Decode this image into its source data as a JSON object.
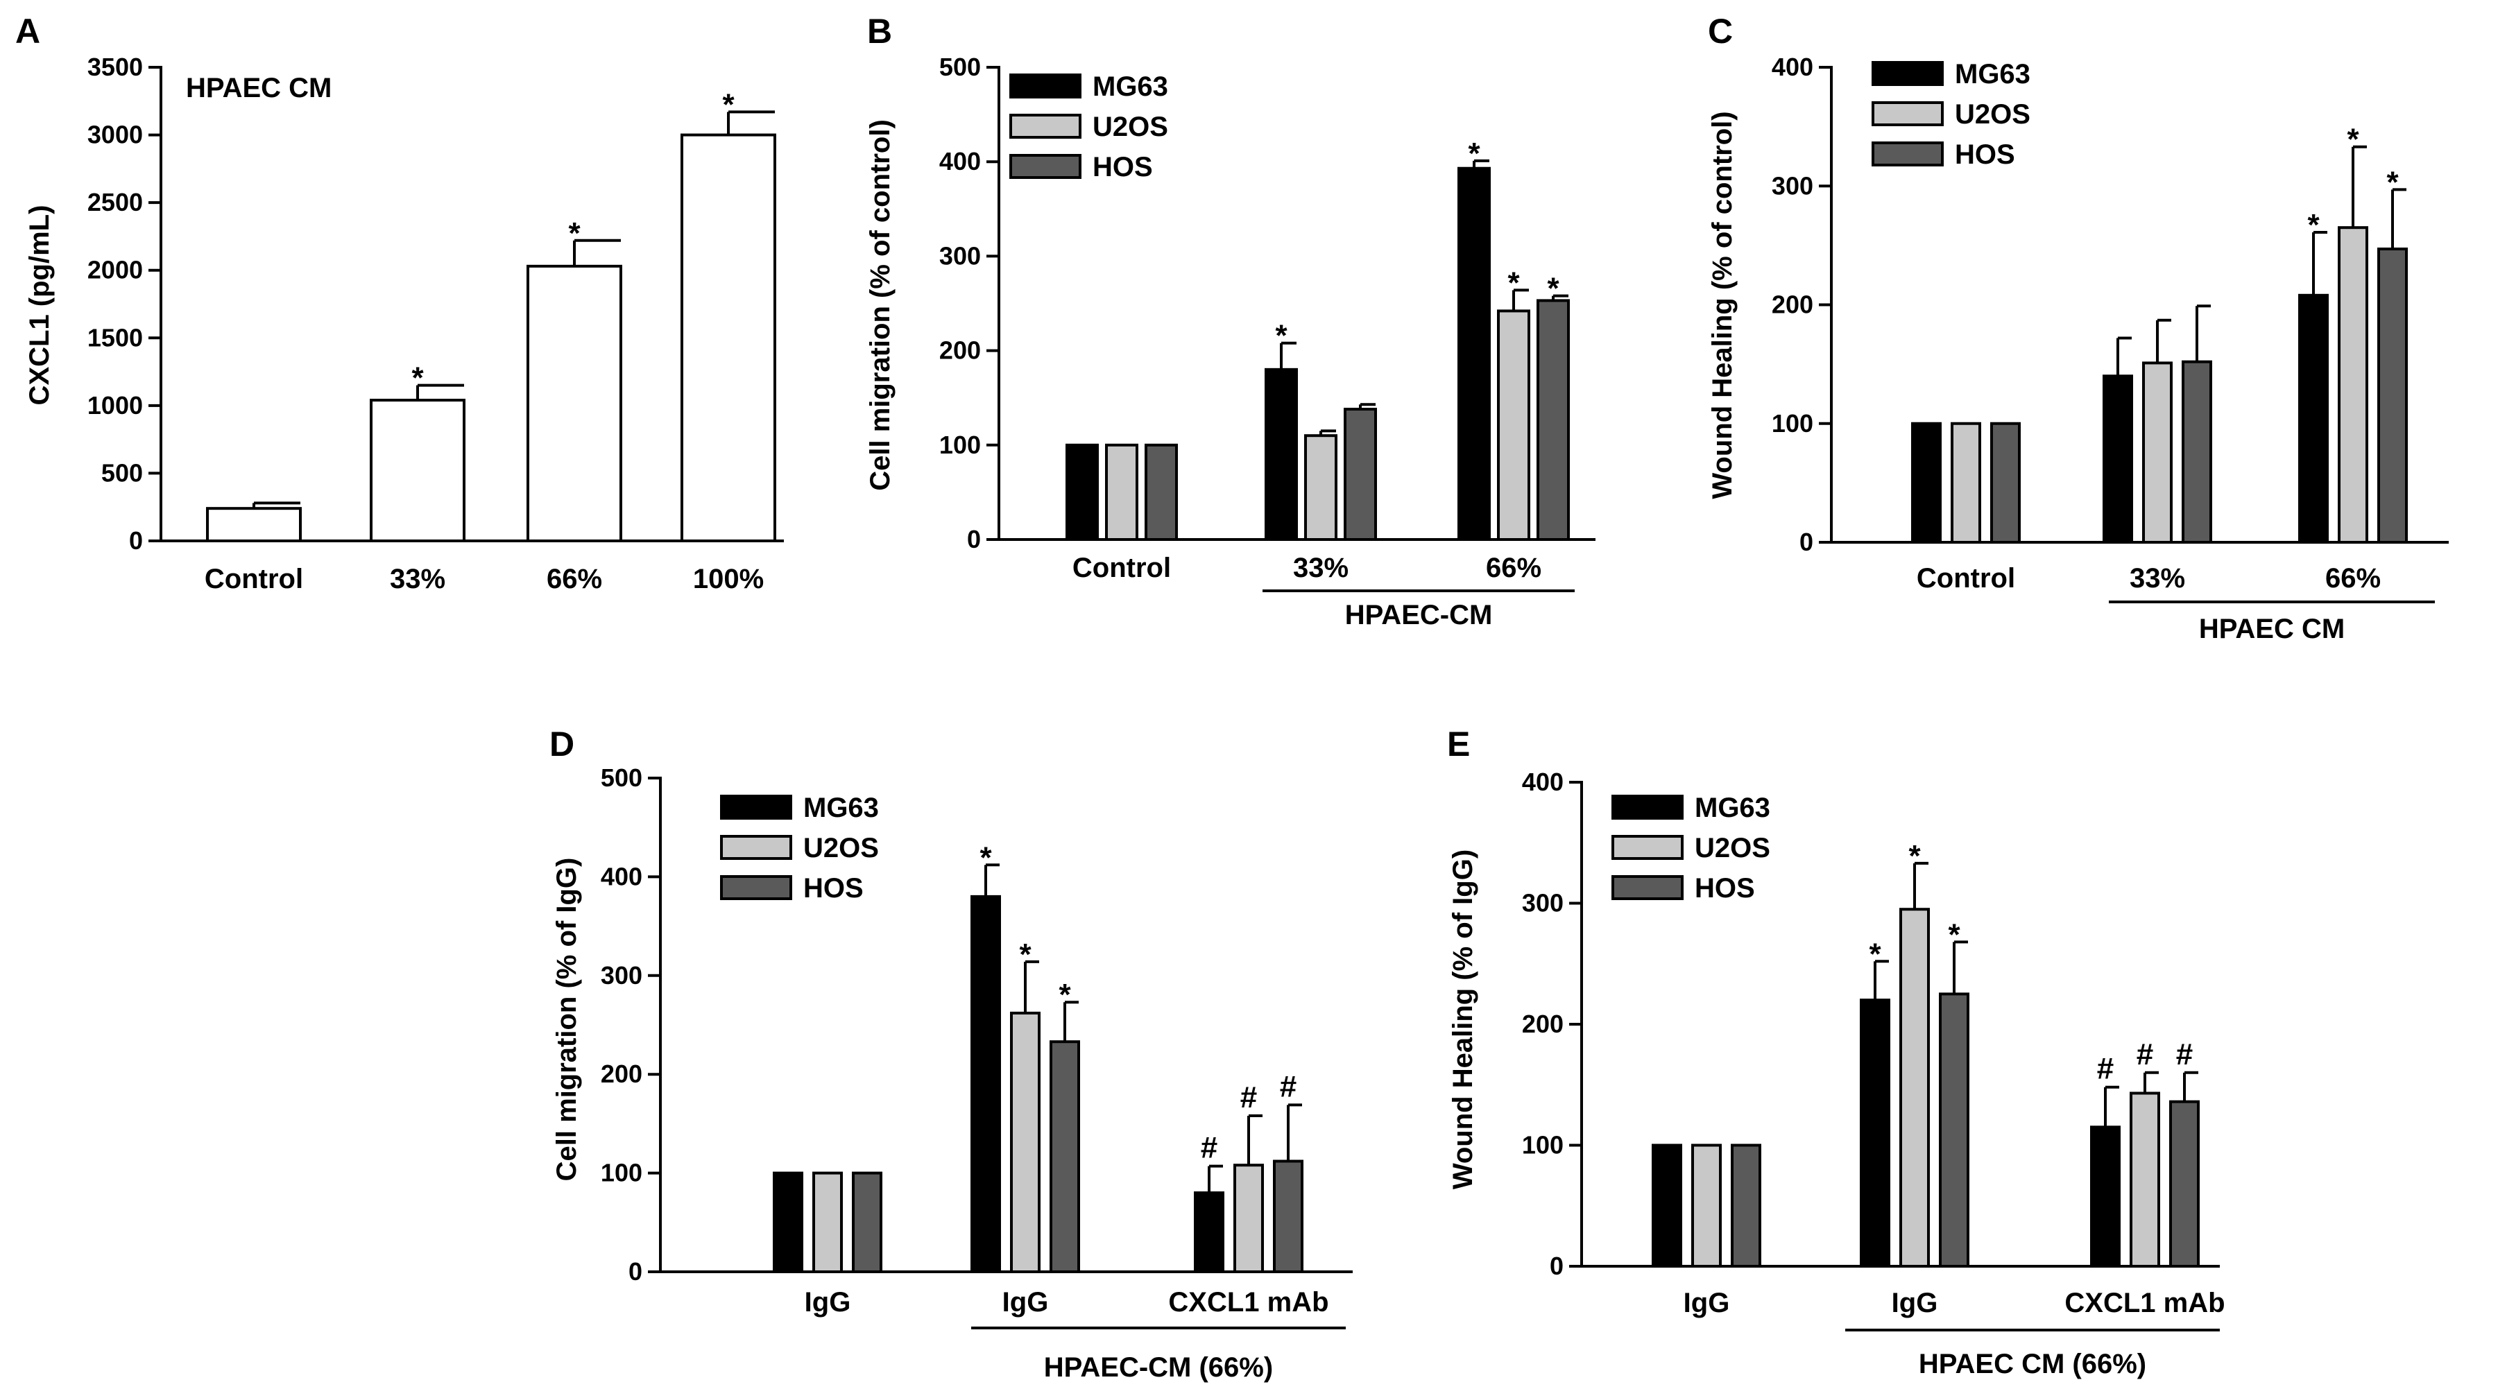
{
  "chart_data": [
    {
      "id": "A",
      "panel_label": "A",
      "type": "bar",
      "title": "HPAEC CM",
      "ylabel": "CXCL1 (pg/mL)",
      "ylim": [
        0,
        3500
      ],
      "yticks": [
        0,
        500,
        1000,
        1500,
        2000,
        2500,
        3000,
        3500
      ],
      "categories": [
        "Control",
        "33%",
        "66%",
        "100%"
      ],
      "series": [
        {
          "name": "CXCL1",
          "color": "#ffffff",
          "values": [
            240,
            1040,
            2030,
            3000
          ],
          "errors": [
            40,
            110,
            190,
            170
          ],
          "marks": [
            "",
            "*",
            "*",
            "*"
          ]
        }
      ]
    },
    {
      "id": "B",
      "panel_label": "B",
      "type": "bar",
      "ylabel": "Cell migration (% of control)",
      "ylim": [
        0,
        500
      ],
      "yticks": [
        0,
        100,
        200,
        300,
        400,
        500
      ],
      "categories": [
        "Control",
        "33%",
        "66%"
      ],
      "group_label": "HPAEC-CM",
      "series": [
        {
          "name": "MG63",
          "color": "#000000",
          "values": [
            100,
            180,
            393
          ],
          "errors": [
            0,
            28,
            8
          ],
          "marks": [
            "",
            "*",
            "*"
          ]
        },
        {
          "name": "U2OS",
          "color": "#c8c8c8",
          "values": [
            100,
            110,
            242
          ],
          "errors": [
            0,
            5,
            22
          ],
          "marks": [
            "",
            "",
            "*"
          ]
        },
        {
          "name": "HOS",
          "color": "#5a5a5a",
          "values": [
            100,
            138,
            253
          ],
          "errors": [
            0,
            5,
            5
          ],
          "marks": [
            "",
            "",
            "*"
          ]
        }
      ]
    },
    {
      "id": "C",
      "panel_label": "C",
      "type": "bar",
      "ylabel": "Wound Healing (% of control)",
      "ylim": [
        0,
        400
      ],
      "yticks": [
        0,
        100,
        200,
        300,
        400
      ],
      "categories": [
        "Control",
        "33%",
        "66%"
      ],
      "group_label": "HPAEC CM",
      "series": [
        {
          "name": "MG63",
          "color": "#000000",
          "values": [
            100,
            140,
            208
          ],
          "errors": [
            0,
            32,
            53
          ],
          "marks": [
            "",
            "",
            "*"
          ]
        },
        {
          "name": "U2OS",
          "color": "#c8c8c8",
          "values": [
            100,
            151,
            265
          ],
          "errors": [
            0,
            36,
            68
          ],
          "marks": [
            "",
            "",
            "*"
          ]
        },
        {
          "name": "HOS",
          "color": "#5a5a5a",
          "values": [
            100,
            152,
            247
          ],
          "errors": [
            0,
            47,
            50
          ],
          "marks": [
            "",
            "",
            "*"
          ]
        }
      ]
    },
    {
      "id": "D",
      "panel_label": "D",
      "type": "bar",
      "ylabel": "Cell migration (% of IgG)",
      "ylim": [
        0,
        500
      ],
      "yticks": [
        0,
        100,
        200,
        300,
        400,
        500
      ],
      "categories": [
        "IgG",
        "IgG",
        "CXCL1  mAb"
      ],
      "group_label": "HPAEC-CM (66%)",
      "series": [
        {
          "name": "MG63",
          "color": "#000000",
          "values": [
            100,
            380,
            80
          ],
          "errors": [
            0,
            32,
            27
          ],
          "marks": [
            "",
            "*",
            "#"
          ]
        },
        {
          "name": "U2OS",
          "color": "#c8c8c8",
          "values": [
            100,
            262,
            108
          ],
          "errors": [
            0,
            52,
            50
          ],
          "marks": [
            "",
            "*",
            "#"
          ]
        },
        {
          "name": "HOS",
          "color": "#5a5a5a",
          "values": [
            100,
            233,
            112
          ],
          "errors": [
            0,
            40,
            57
          ],
          "marks": [
            "",
            "*",
            "#"
          ]
        }
      ]
    },
    {
      "id": "E",
      "panel_label": "E",
      "type": "bar",
      "ylabel": "Wound Healing (% of IgG)",
      "ylim": [
        0,
        400
      ],
      "yticks": [
        0,
        100,
        200,
        300,
        400
      ],
      "categories": [
        "IgG",
        "IgG",
        "CXCL1  mAb"
      ],
      "group_label": "HPAEC CM (66%)",
      "series": [
        {
          "name": "MG63",
          "color": "#000000",
          "values": [
            100,
            220,
            115
          ],
          "errors": [
            0,
            32,
            33
          ],
          "marks": [
            "",
            "*",
            "#"
          ]
        },
        {
          "name": "U2OS",
          "color": "#c8c8c8",
          "values": [
            100,
            295,
            143
          ],
          "errors": [
            0,
            38,
            17
          ],
          "marks": [
            "",
            "*",
            "#"
          ]
        },
        {
          "name": "HOS",
          "color": "#5a5a5a",
          "values": [
            100,
            225,
            136
          ],
          "errors": [
            0,
            43,
            24
          ],
          "marks": [
            "",
            "*",
            "#"
          ]
        }
      ]
    }
  ]
}
